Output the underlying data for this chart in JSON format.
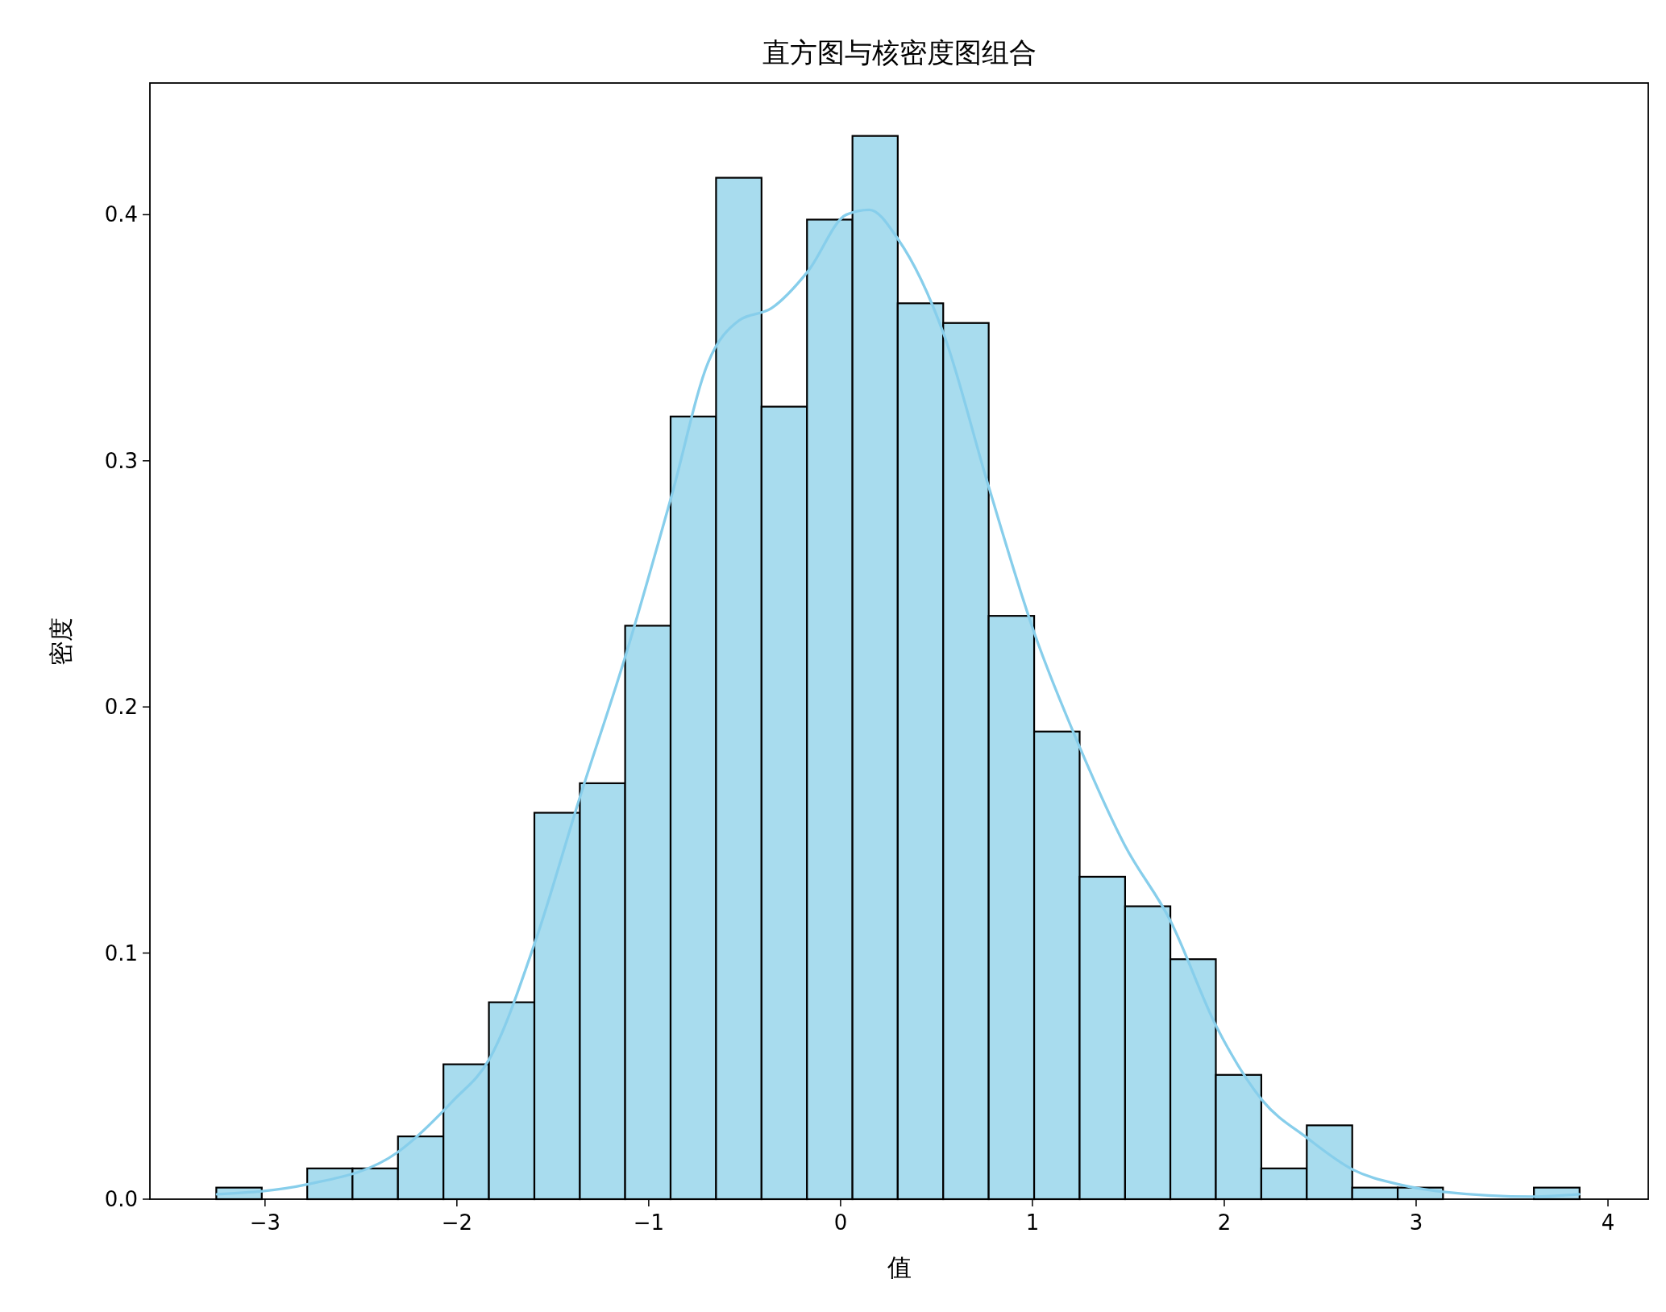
{
  "chart_data": {
    "type": "histogram",
    "title": "直方图与核密度图组合",
    "xlabel": "值",
    "ylabel": "密度",
    "bins": [
      -3.254,
      -3.017,
      -2.78,
      -2.544,
      -2.307,
      -2.07,
      -1.833,
      -1.596,
      -1.359,
      -1.123,
      -0.886,
      -0.649,
      -0.412,
      -0.175,
      0.062,
      0.298,
      0.535,
      0.772,
      1.009,
      1.246,
      1.483,
      1.719,
      1.956,
      2.193,
      2.43,
      2.667,
      2.904,
      3.14,
      3.377,
      3.614,
      3.852
    ],
    "values": [
      0.0047,
      0,
      0.0125,
      0.0125,
      0.0255,
      0.0548,
      0.08,
      0.157,
      0.169,
      0.233,
      0.318,
      0.415,
      0.322,
      0.398,
      0.432,
      0.364,
      0.356,
      0.237,
      0.19,
      0.131,
      0.119,
      0.0975,
      0.0505,
      0.0125,
      0.03,
      0.0047,
      0.0047,
      0,
      0,
      0.0047
    ],
    "color": "#a8dcee",
    "series": [
      {
        "type": "line",
        "color": "#87ceeb",
        "x": [
          -3.25,
          -2.78,
          -2.31,
          -2.02,
          -1.83,
          -1.59,
          -1.36,
          -1.12,
          -0.88,
          -0.69,
          -0.53,
          -0.36,
          -0.17,
          0.03,
          0.15,
          0.3,
          0.54,
          0.77,
          1.01,
          1.25,
          1.48,
          1.72,
          1.96,
          2.2,
          2.43,
          2.67,
          2.91,
          3.14,
          3.61,
          3.85
        ],
        "values": [
          0.002,
          0.006,
          0.019,
          0.04,
          0.057,
          0.105,
          0.163,
          0.221,
          0.286,
          0.34,
          0.357,
          0.362,
          0.377,
          0.4,
          0.402,
          0.39,
          0.351,
          0.29,
          0.23,
          0.183,
          0.144,
          0.113,
          0.07,
          0.04,
          0.025,
          0.012,
          0.006,
          0.003,
          0.001,
          0.002
        ]
      }
    ],
    "xlim": [
      -3.6,
      4.21
    ],
    "ylim": [
      0,
      0.4535
    ],
    "xticks": [
      {
        "value": -3,
        "label": "−3"
      },
      {
        "value": -2,
        "label": "−2"
      },
      {
        "value": -1,
        "label": "−1"
      },
      0,
      1,
      2,
      3,
      4
    ],
    "yticks": [
      {
        "value": 0,
        "label": "0.0"
      },
      0.1,
      0.2,
      0.3,
      0.4
    ],
    "grid": false
  }
}
